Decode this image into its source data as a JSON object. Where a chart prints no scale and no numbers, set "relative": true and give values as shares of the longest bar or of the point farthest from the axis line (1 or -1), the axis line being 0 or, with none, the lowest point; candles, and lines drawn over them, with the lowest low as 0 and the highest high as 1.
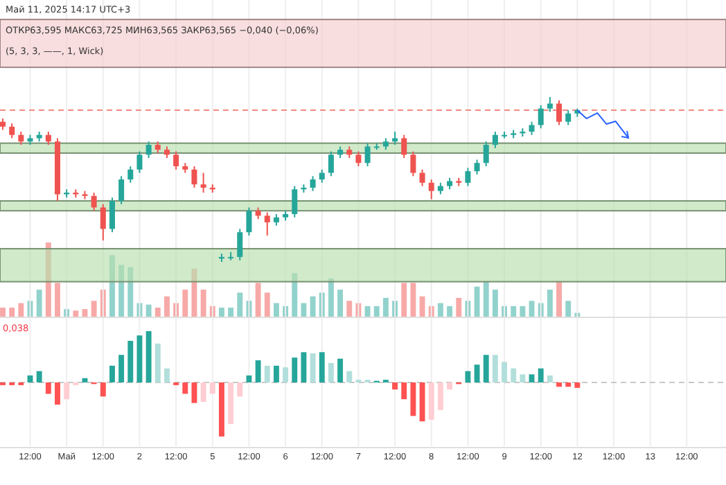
{
  "chart_data": [
    {
      "type": "candlestick",
      "relative": true,
      "tick_labels": false,
      "grid": "x",
      "annotations": [
        "Май 11, 2025 14:17 UTC+3",
        "ОТКР63,595 МАКС63,725 МИН63,565 ЗАКР63,565 −0,040 (−0,06%)",
        "(5, 3, 3, ——, 1, Wick)"
      ],
      "categories": [
        null,
        null,
        null,
        null,
        null,
        null,
        null,
        null,
        null,
        null,
        null,
        null,
        null,
        null,
        null,
        null,
        null,
        null,
        null,
        null,
        null,
        null,
        null,
        null,
        null,
        null,
        null,
        null,
        null,
        null,
        null,
        null,
        null,
        null,
        null,
        null,
        null,
        null,
        null,
        null,
        null,
        null,
        null,
        null,
        null,
        null,
        null,
        null,
        null,
        null,
        null,
        null,
        null,
        null,
        null,
        null,
        null,
        null,
        null,
        null,
        null,
        null,
        null,
        null,
        null,
        null,
        null,
        null,
        null,
        null,
        null,
        null,
        null,
        null,
        null,
        null,
        null,
        null,
        null,
        null
      ],
      "ohlc": [
        [
          0.85,
          0.87,
          0.8,
          0.82
        ],
        [
          0.82,
          0.84,
          0.75,
          0.77
        ],
        [
          0.77,
          0.79,
          0.71,
          0.73
        ],
        [
          0.73,
          0.77,
          0.71,
          0.75
        ],
        [
          0.75,
          0.79,
          0.73,
          0.77
        ],
        [
          0.77,
          0.79,
          0.71,
          0.73
        ],
        [
          0.73,
          0.75,
          0.37,
          0.41
        ],
        [
          0.41,
          0.44,
          0.39,
          0.42
        ],
        [
          0.42,
          0.44,
          0.39,
          0.41
        ],
        [
          0.41,
          0.43,
          0.38,
          0.4
        ],
        [
          0.4,
          0.42,
          0.31,
          0.33
        ],
        [
          0.33,
          0.35,
          0.13,
          0.2
        ],
        [
          0.2,
          0.39,
          0.18,
          0.37
        ],
        [
          0.37,
          0.52,
          0.35,
          0.5
        ],
        [
          0.5,
          0.58,
          0.48,
          0.56
        ],
        [
          0.56,
          0.67,
          0.54,
          0.65
        ],
        [
          0.65,
          0.73,
          0.63,
          0.71
        ],
        [
          0.71,
          0.73,
          0.66,
          0.68
        ],
        [
          0.68,
          0.7,
          0.63,
          0.65
        ],
        [
          0.65,
          0.67,
          0.56,
          0.58
        ],
        [
          0.58,
          0.6,
          0.54,
          0.56
        ],
        [
          0.56,
          0.58,
          0.45,
          0.47
        ],
        [
          0.47,
          0.54,
          0.42,
          0.45
        ],
        [
          0.45,
          0.47,
          0.42,
          0.44
        ],
        [
          0.02,
          0.05,
          0.0,
          0.03
        ],
        [
          0.03,
          0.06,
          0.01,
          0.03
        ],
        [
          0.03,
          0.2,
          0.01,
          0.18
        ],
        [
          0.18,
          0.33,
          0.16,
          0.31
        ],
        [
          0.31,
          0.33,
          0.26,
          0.28
        ],
        [
          0.28,
          0.3,
          0.16,
          0.24
        ],
        [
          0.24,
          0.29,
          0.22,
          0.27
        ],
        [
          0.27,
          0.31,
          0.25,
          0.29
        ],
        [
          0.29,
          0.46,
          0.27,
          0.44
        ],
        [
          0.44,
          0.47,
          0.42,
          0.45
        ],
        [
          0.45,
          0.52,
          0.43,
          0.5
        ],
        [
          0.5,
          0.56,
          0.48,
          0.54
        ],
        [
          0.54,
          0.67,
          0.52,
          0.65
        ],
        [
          0.65,
          0.7,
          0.63,
          0.68
        ],
        [
          0.68,
          0.7,
          0.63,
          0.65
        ],
        [
          0.65,
          0.67,
          0.58,
          0.6
        ],
        [
          0.6,
          0.72,
          0.58,
          0.7
        ],
        [
          0.7,
          0.72,
          0.68,
          0.7
        ],
        [
          0.7,
          0.75,
          0.68,
          0.73
        ],
        [
          0.73,
          0.79,
          0.71,
          0.75
        ],
        [
          0.75,
          0.77,
          0.63,
          0.65
        ],
        [
          0.65,
          0.67,
          0.52,
          0.54
        ],
        [
          0.54,
          0.56,
          0.46,
          0.48
        ],
        [
          0.48,
          0.5,
          0.38,
          0.43
        ],
        [
          0.43,
          0.48,
          0.41,
          0.46
        ],
        [
          0.46,
          0.51,
          0.44,
          0.49
        ],
        [
          0.49,
          0.51,
          0.46,
          0.48
        ],
        [
          0.48,
          0.57,
          0.46,
          0.55
        ],
        [
          0.55,
          0.62,
          0.53,
          0.6
        ],
        [
          0.6,
          0.73,
          0.58,
          0.71
        ],
        [
          0.71,
          0.79,
          0.69,
          0.77
        ],
        [
          0.77,
          0.79,
          0.75,
          0.77
        ],
        [
          0.77,
          0.8,
          0.75,
          0.78
        ],
        [
          0.78,
          0.81,
          0.76,
          0.79
        ],
        [
          0.79,
          0.85,
          0.77,
          0.83
        ],
        [
          0.83,
          0.95,
          0.81,
          0.93
        ],
        [
          0.93,
          1.0,
          0.91,
          0.96
        ],
        [
          0.96,
          0.98,
          0.83,
          0.85
        ],
        [
          0.85,
          0.92,
          0.83,
          0.9
        ],
        [
          0.9,
          0.93,
          0.88,
          0.92
        ],
        null,
        null,
        null,
        null,
        null,
        null,
        null,
        null,
        null,
        null,
        null,
        null,
        null,
        null,
        null,
        null
      ],
      "colors": [
        "#ef5350",
        "#ef5350",
        "#ef5350",
        "#26a69a",
        "#26a69a",
        "#ef5350",
        "#ef5350",
        "#26a69a",
        "#ef5350",
        "#ef5350",
        "#ef5350",
        "#ef5350",
        "#26a69a",
        "#26a69a",
        "#26a69a",
        "#26a69a",
        "#26a69a",
        "#ef5350",
        "#ef5350",
        "#ef5350",
        "#ef5350",
        "#ef5350",
        "#ef5350",
        "#ef5350",
        "#26a69a",
        "#26a69a",
        "#26a69a",
        "#26a69a",
        "#ef5350",
        "#ef5350",
        "#26a69a",
        "#26a69a",
        "#26a69a",
        "#26a69a",
        "#26a69a",
        "#26a69a",
        "#26a69a",
        "#26a69a",
        "#ef5350",
        "#ef5350",
        "#26a69a",
        "#26a69a",
        "#26a69a",
        "#26a69a",
        "#ef5350",
        "#ef5350",
        "#ef5350",
        "#ef5350",
        "#26a69a",
        "#26a69a",
        "#ef5350",
        "#26a69a",
        "#26a69a",
        "#26a69a",
        "#26a69a",
        "#26a69a",
        "#26a69a",
        "#26a69a",
        "#26a69a",
        "#26a69a",
        "#26a69a",
        "#ef5350",
        "#26a69a",
        "#26a69a",
        null,
        null,
        null,
        null,
        null,
        null,
        null,
        null,
        null,
        null,
        null,
        null,
        null,
        null,
        null,
        null
      ],
      "ref_lines": [
        {
          "axis": "y",
          "value": 0.92,
          "color": "#f28b82",
          "line_style": "dashed"
        }
      ],
      "bands": [
        {
          "axis": "y",
          "from": 1.18,
          "to": 1.47,
          "color": "#f4cccc"
        },
        {
          "axis": "y",
          "from": 0.66,
          "to": 0.72,
          "color": "#b7dfae"
        },
        {
          "axis": "y",
          "from": 0.31,
          "to": 0.37,
          "color": "#b7dfae"
        },
        {
          "axis": "y",
          "from": -0.12,
          "to": 0.08,
          "color": "#b7dfae"
        }
      ]
    },
    {
      "type": "bar",
      "relative": true,
      "tick_labels": false,
      "grid": "x",
      "categories": [
        null,
        null,
        null,
        null,
        null,
        null,
        null,
        null,
        null,
        null,
        null,
        null,
        null,
        null,
        null,
        null,
        null,
        null,
        null,
        null,
        null,
        null,
        null,
        null,
        null,
        null,
        null,
        null,
        null,
        null,
        null,
        null,
        null,
        null,
        null,
        null,
        null,
        null,
        null,
        null,
        null,
        null,
        null,
        null,
        null,
        null,
        null,
        null,
        null,
        null,
        null,
        null,
        null,
        null,
        null,
        null,
        null,
        null,
        null,
        null,
        null,
        null,
        null,
        null,
        null,
        null,
        null,
        null,
        null,
        null,
        null,
        null,
        null,
        null,
        null,
        null,
        null,
        null,
        null,
        null
      ],
      "values": [
        0.13,
        0.13,
        0.19,
        0.22,
        0.37,
        1,
        0.46,
        0.11,
        0.09,
        0.11,
        0.22,
        0.37,
        0.83,
        0.7,
        0.67,
        0.19,
        0.17,
        0.13,
        0.28,
        0.19,
        0.37,
        0.65,
        0.37,
        0.15,
        0.13,
        0.13,
        0.33,
        0.22,
        0.46,
        0.33,
        0.19,
        0.15,
        0.59,
        0.19,
        0.28,
        0.33,
        0.52,
        0.37,
        0.22,
        0.19,
        0.15,
        0.15,
        0.26,
        0.22,
        0.46,
        0.46,
        0.28,
        0.15,
        0.19,
        0.15,
        0.26,
        0.22,
        0.41,
        0.48,
        0.37,
        0.15,
        0.15,
        0.15,
        0.22,
        0.19,
        0.37,
        0.48,
        0.22,
        0.06,
        null,
        null,
        null,
        null,
        null,
        null,
        null,
        null,
        null,
        null,
        null,
        null,
        null,
        null,
        null,
        null
      ],
      "colors": [
        "#f7a9a7",
        "#f7a9a7",
        "#f7a9a7",
        "#92d2cc",
        "#92d2cc",
        "#f7a9a7",
        "#f7a9a7",
        "#92d2cc",
        "#f7a9a7",
        "#f7a9a7",
        "#f7a9a7",
        "#f7a9a7",
        "#92d2cc",
        "#92d2cc",
        "#92d2cc",
        "#92d2cc",
        "#92d2cc",
        "#f7a9a7",
        "#f7a9a7",
        "#f7a9a7",
        "#f7a9a7",
        "#f7a9a7",
        "#f7a9a7",
        "#f7a9a7",
        "#92d2cc",
        "#92d2cc",
        "#92d2cc",
        "#92d2cc",
        "#f7a9a7",
        "#f7a9a7",
        "#92d2cc",
        "#92d2cc",
        "#92d2cc",
        "#92d2cc",
        "#92d2cc",
        "#92d2cc",
        "#92d2cc",
        "#92d2cc",
        "#f7a9a7",
        "#f7a9a7",
        "#92d2cc",
        "#92d2cc",
        "#92d2cc",
        "#92d2cc",
        "#f7a9a7",
        "#f7a9a7",
        "#f7a9a7",
        "#f7a9a7",
        "#92d2cc",
        "#92d2cc",
        "#f7a9a7",
        "#92d2cc",
        "#92d2cc",
        "#92d2cc",
        "#92d2cc",
        "#92d2cc",
        "#92d2cc",
        "#92d2cc",
        "#92d2cc",
        "#92d2cc",
        "#92d2cc",
        "#f7a9a7",
        "#92d2cc",
        "#92d2cc",
        null,
        null,
        null,
        null,
        null,
        null,
        null,
        null,
        null,
        null,
        null,
        null,
        null,
        null,
        null,
        null
      ]
    },
    {
      "type": "bar",
      "relative": true,
      "tick_labels": "x",
      "grid": "x",
      "annotations": [
        "0,038"
      ],
      "categories": [
        null,
        null,
        null,
        "12:00",
        null,
        null,
        null,
        "Май",
        null,
        null,
        null,
        "12:00",
        null,
        null,
        null,
        "2",
        null,
        null,
        null,
        "12:00",
        null,
        null,
        null,
        "5",
        null,
        null,
        null,
        "12:00",
        null,
        null,
        null,
        "6",
        null,
        null,
        null,
        "12:00",
        null,
        null,
        null,
        "7",
        null,
        null,
        null,
        "12:00",
        null,
        null,
        null,
        "8",
        null,
        null,
        null,
        "12:00",
        null,
        null,
        null,
        "9",
        null,
        null,
        null,
        "12:00",
        null,
        null,
        null,
        "12",
        null,
        null,
        null,
        "12:00",
        null,
        null,
        null,
        "13",
        null,
        null,
        null,
        "12:00",
        null,
        null,
        null,
        null
      ],
      "values": [
        -0.05,
        -0.05,
        -0.05,
        0.13,
        0.21,
        -0.21,
        -0.41,
        -0.31,
        -0.05,
        0.08,
        -0.03,
        -0.26,
        0.31,
        0.51,
        0.77,
        0.87,
        0.95,
        0.72,
        0.26,
        -0.05,
        -0.21,
        -0.38,
        -0.36,
        -0.21,
        -1,
        -0.77,
        -0.26,
        0.13,
        0.41,
        0.31,
        0.31,
        0.28,
        0.46,
        0.56,
        0.54,
        0.56,
        0.36,
        0.44,
        0.21,
        0.05,
        0.05,
        0.03,
        0.05,
        -0.13,
        -0.31,
        -0.62,
        -0.72,
        -0.69,
        -0.51,
        -0.13,
        -0.03,
        0.21,
        0.33,
        0.51,
        0.51,
        0.38,
        0.26,
        0.15,
        0.15,
        0.26,
        0.13,
        -0.08,
        -0.08,
        -0.1,
        null,
        null,
        null,
        null,
        null,
        null,
        null,
        null,
        null,
        null,
        null,
        null,
        null,
        null,
        null,
        null
      ],
      "colors": [
        "#ff5252",
        "#ff5252",
        "#ff5252",
        "#26a69a",
        "#26a69a",
        "#ff5252",
        "#ff5252",
        "#ffcdd2",
        "#ffcdd2",
        "#26a69a",
        "#ff5252",
        "#ff5252",
        "#26a69a",
        "#26a69a",
        "#26a69a",
        "#26a69a",
        "#26a69a",
        "#b2dfdb",
        "#b2dfdb",
        "#ff5252",
        "#ff5252",
        "#ff5252",
        "#ffcdd2",
        "#ffcdd2",
        "#ff5252",
        "#ffcdd2",
        "#ffcdd2",
        "#26a69a",
        "#26a69a",
        "#b2dfdb",
        "#26a69a",
        "#b2dfdb",
        "#26a69a",
        "#26a69a",
        "#b2dfdb",
        "#26a69a",
        "#b2dfdb",
        "#26a69a",
        "#b2dfdb",
        "#b2dfdb",
        "#b2dfdb",
        "#26a69a",
        "#26a69a",
        "#ff5252",
        "#ff5252",
        "#ff5252",
        "#ff5252",
        "#ffcdd2",
        "#ffcdd2",
        "#ffcdd2",
        "#ff5252",
        "#26a69a",
        "#26a69a",
        "#26a69a",
        "#b2dfdb",
        "#b2dfdb",
        "#b2dfdb",
        "#b2dfdb",
        "#26a69a",
        "#26a69a",
        "#b2dfdb",
        "#ff5252",
        "#ff5252",
        "#ff5252",
        null,
        null,
        null,
        null,
        null,
        null,
        null,
        null,
        null,
        null,
        null,
        null,
        null,
        null,
        null,
        null
      ],
      "ref_lines": [
        {
          "axis": "y",
          "value": 0,
          "color": "#c8c8c8",
          "line_style": "dashed"
        }
      ]
    }
  ]
}
